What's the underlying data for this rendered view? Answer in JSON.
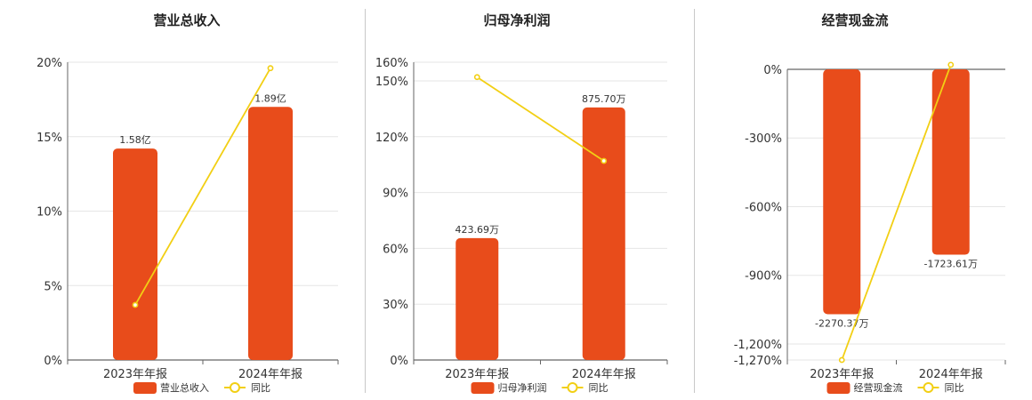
{
  "colors": {
    "bar": "#e84c1b",
    "line": "#f2cf14",
    "grid": "#e6e6e6",
    "axis": "#666666"
  },
  "legend_line_label": "同比",
  "chart_data": [
    {
      "type": "bar",
      "title": "营业总收入",
      "categories": [
        "2023年年报",
        "2024年年报"
      ],
      "series": [
        {
          "name": "营业总收入",
          "kind": "bar",
          "values": [
            14.2,
            17.0
          ],
          "labels": [
            "1.58亿",
            "1.89亿"
          ]
        },
        {
          "name": "同比",
          "kind": "line",
          "values": [
            3.7,
            19.6
          ]
        }
      ],
      "ylim": [
        0,
        20
      ],
      "yticks": [
        0,
        5,
        10,
        15,
        20
      ],
      "ytick_labels": [
        "0%",
        "5%",
        "10%",
        "15%",
        "20%"
      ],
      "legend": "bottom"
    },
    {
      "type": "bar",
      "title": "归母净利润",
      "categories": [
        "2023年年报",
        "2024年年报"
      ],
      "series": [
        {
          "name": "归母净利润",
          "kind": "bar",
          "values": [
            65.5,
            135.7
          ],
          "labels": [
            "423.69万",
            "875.70万"
          ]
        },
        {
          "name": "同比",
          "kind": "line",
          "values": [
            152,
            107
          ]
        }
      ],
      "ylim": [
        0,
        160
      ],
      "yticks": [
        0,
        30,
        60,
        90,
        120,
        150,
        160
      ],
      "ytick_labels": [
        "0%",
        "30%",
        "60%",
        "90%",
        "120%",
        "150%",
        "160%"
      ],
      "legend": "bottom"
    },
    {
      "type": "bar",
      "title": "经营现金流",
      "categories": [
        "2023年年报",
        "2024年年报"
      ],
      "series": [
        {
          "name": "经营现金流",
          "kind": "bar",
          "values": [
            -1070,
            -810
          ],
          "labels": [
            "-2270.37万",
            "-1723.61万"
          ]
        },
        {
          "name": "同比",
          "kind": "line",
          "values": [
            -1270,
            20
          ]
        }
      ],
      "ylim": [
        -1270,
        0
      ],
      "yticks": [
        0,
        -300,
        -600,
        -900,
        -1200,
        -1270
      ],
      "ytick_labels": [
        "0%",
        "-300%",
        "-600%",
        "-900%",
        "-1,200%",
        "-1,270%"
      ],
      "legend": "bottom"
    }
  ]
}
